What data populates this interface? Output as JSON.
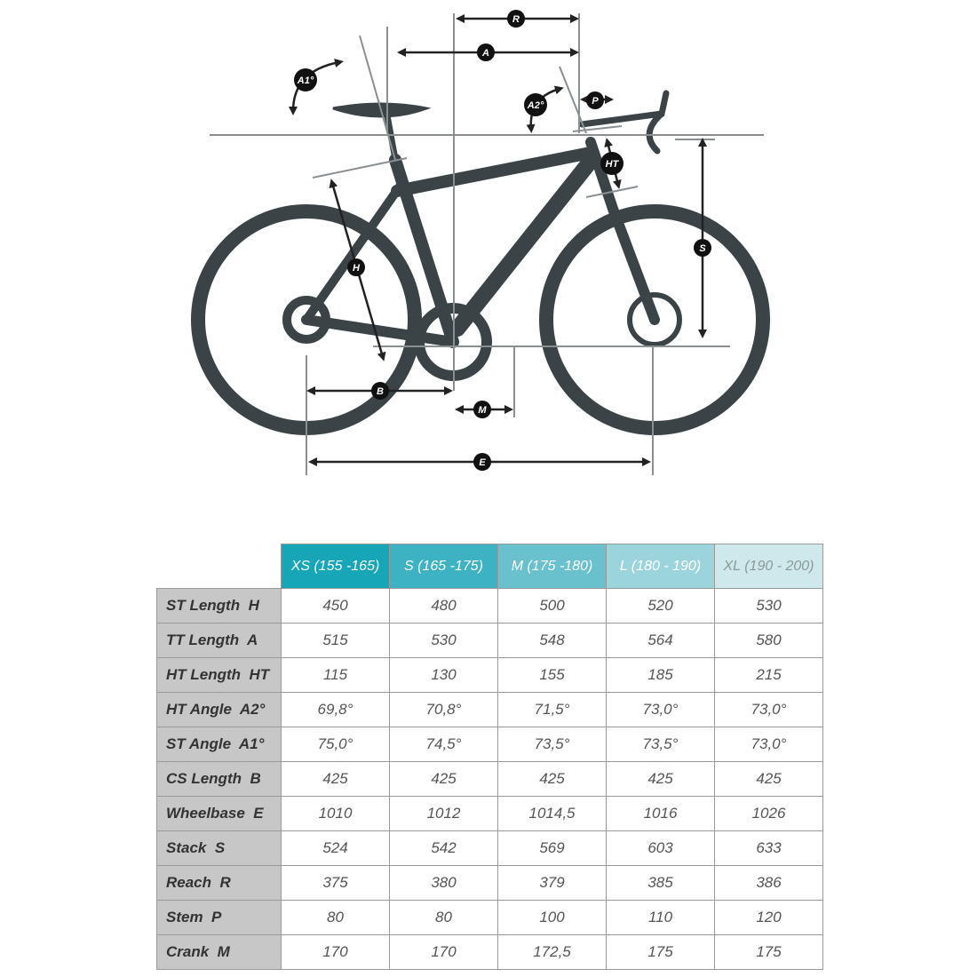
{
  "diagram": {
    "labels": [
      "R",
      "A",
      "A1°",
      "A2°",
      "P",
      "HT",
      "H",
      "S",
      "B",
      "M",
      "E"
    ]
  },
  "table": {
    "header": [
      "XS (155 -165)",
      "S (165 -175)",
      "M (175 -180)",
      "L (180 - 190)",
      "XL (190 - 200)"
    ],
    "rows": [
      {
        "name": "ST Length",
        "code": "H",
        "values": [
          "450",
          "480",
          "500",
          "520",
          "530"
        ]
      },
      {
        "name": "TT Length",
        "code": "A",
        "values": [
          "515",
          "530",
          "548",
          "564",
          "580"
        ]
      },
      {
        "name": "HT Length",
        "code": "HT",
        "values": [
          "115",
          "130",
          "155",
          "185",
          "215"
        ]
      },
      {
        "name": "HT Angle",
        "code": "A2°",
        "values": [
          "69,8°",
          "70,8°",
          "71,5°",
          "73,0°",
          "73,0°"
        ]
      },
      {
        "name": "ST Angle",
        "code": "A1°",
        "values": [
          "75,0°",
          "74,5°",
          "73,5°",
          "73,5°",
          "73,0°"
        ]
      },
      {
        "name": "CS Length",
        "code": "B",
        "values": [
          "425",
          "425",
          "425",
          "425",
          "425"
        ]
      },
      {
        "name": "Wheelbase",
        "code": "E",
        "values": [
          "1010",
          "1012",
          "1014,5",
          "1016",
          "1026"
        ]
      },
      {
        "name": "Stack",
        "code": "S",
        "values": [
          "524",
          "542",
          "569",
          "603",
          "633"
        ]
      },
      {
        "name": "Reach",
        "code": "R",
        "values": [
          "375",
          "380",
          "379",
          "385",
          "386"
        ]
      },
      {
        "name": "Stem",
        "code": "P",
        "values": [
          "80",
          "80",
          "100",
          "110",
          "120"
        ]
      },
      {
        "name": "Crank",
        "code": "M",
        "values": [
          "170",
          "170",
          "172,5",
          "175",
          "175"
        ]
      }
    ]
  }
}
